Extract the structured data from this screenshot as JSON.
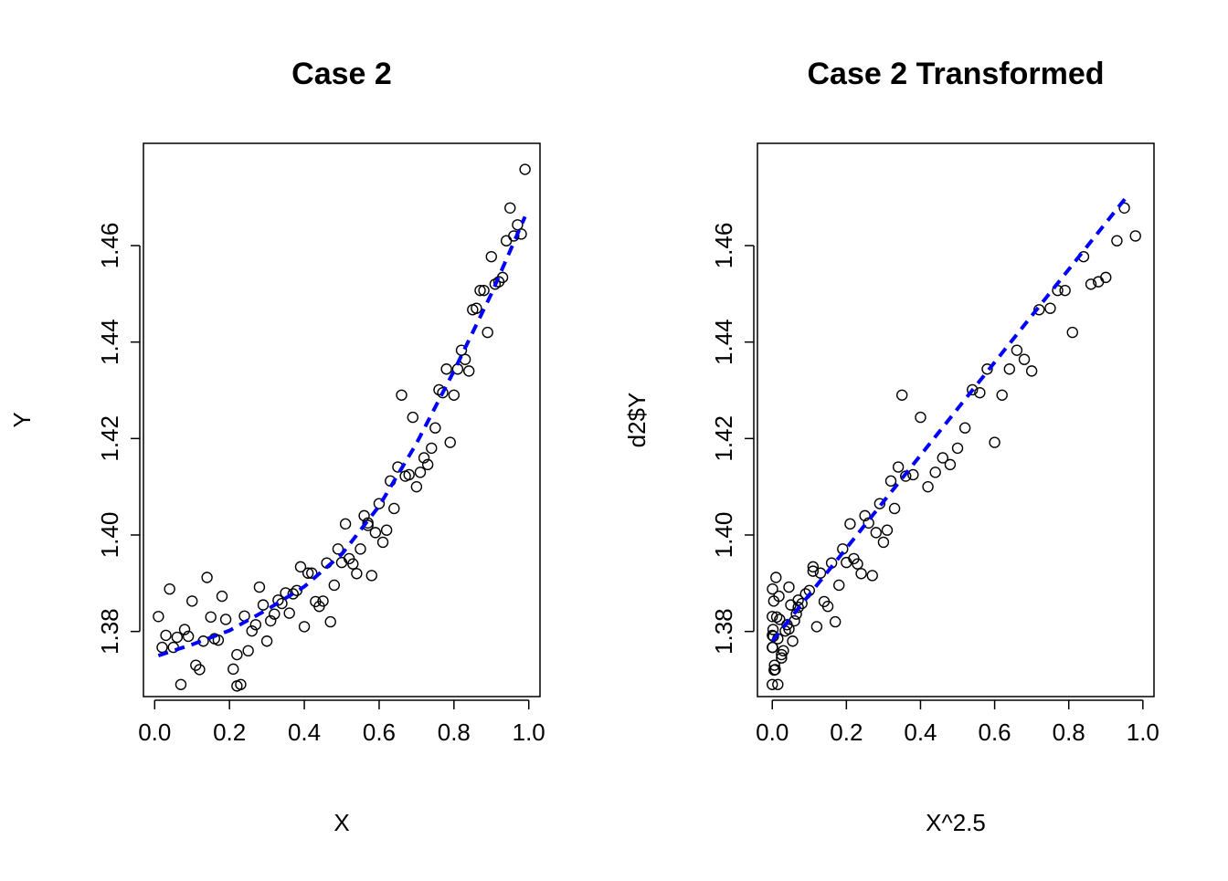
{
  "chart_data": [
    {
      "type": "scatter",
      "title": "Case 2",
      "xlabel": "X",
      "ylabel": "Y",
      "xlim": [
        -0.03,
        1.03
      ],
      "ylim": [
        1.3665,
        1.4812
      ],
      "xticks": [
        0.0,
        0.2,
        0.4,
        0.6,
        0.8,
        1.0
      ],
      "xtick_labels": [
        "0.0",
        "0.2",
        "0.4",
        "0.6",
        "0.8",
        "1.0"
      ],
      "yticks": [
        1.38,
        1.4,
        1.42,
        1.44,
        1.46
      ],
      "ytick_labels": [
        "1.38",
        "1.40",
        "1.42",
        "1.44",
        "1.46"
      ],
      "grid": false,
      "points": {
        "x": [
          0.01,
          0.02,
          0.03,
          0.04,
          0.05,
          0.07,
          0.08,
          0.09,
          0.1,
          0.11,
          0.12,
          0.14,
          0.15,
          0.16,
          0.18,
          0.19,
          0.21,
          0.22,
          0.23,
          0.24,
          0.25,
          0.26,
          0.27,
          0.28,
          0.29,
          0.3,
          0.31,
          0.32,
          0.33,
          0.34,
          0.36,
          0.37,
          0.38,
          0.39,
          0.4,
          0.41,
          0.42,
          0.43,
          0.44,
          0.45,
          0.46,
          0.47,
          0.48,
          0.49,
          0.5,
          0.51,
          0.52,
          0.53,
          0.54,
          0.55,
          0.56,
          0.57,
          0.58,
          0.59,
          0.6,
          0.61,
          0.62,
          0.63,
          0.64,
          0.65,
          0.66,
          0.67,
          0.68,
          0.69,
          0.7,
          0.71,
          0.72,
          0.73,
          0.74,
          0.75,
          0.76,
          0.77,
          0.78,
          0.79,
          0.8,
          0.81,
          0.82,
          0.83,
          0.84,
          0.85,
          0.86,
          0.87,
          0.88,
          0.89,
          0.9,
          0.91,
          0.92,
          0.93,
          0.94,
          0.95,
          0.96,
          0.97,
          0.98,
          0.99,
          0.06,
          0.13,
          0.17,
          0.22,
          0.35,
          0.57
        ],
        "y": [
          1.3831,
          1.3767,
          1.3792,
          1.3888,
          1.3767,
          1.369,
          1.3804,
          1.379,
          1.3863,
          1.373,
          1.3721,
          1.3912,
          1.383,
          1.3785,
          1.3873,
          1.3825,
          1.3722,
          1.3752,
          1.369,
          1.3832,
          1.376,
          1.3801,
          1.3814,
          1.3892,
          1.3855,
          1.378,
          1.3822,
          1.3836,
          1.3865,
          1.3858,
          1.3838,
          1.3878,
          1.3885,
          1.3934,
          1.381,
          1.3921,
          1.3921,
          1.3862,
          1.3852,
          1.3863,
          1.3942,
          1.382,
          1.3896,
          1.3971,
          1.3943,
          1.4023,
          1.3951,
          1.394,
          1.392,
          1.3971,
          1.404,
          1.4025,
          1.3916,
          1.4005,
          1.4065,
          1.3985,
          1.401,
          1.4112,
          1.4055,
          1.4141,
          1.429,
          1.4122,
          1.4125,
          1.4244,
          1.41,
          1.413,
          1.416,
          1.4146,
          1.418,
          1.4222,
          1.4301,
          1.4295,
          1.4344,
          1.4192,
          1.429,
          1.4344,
          1.4383,
          1.4364,
          1.434,
          1.4467,
          1.447,
          1.4507,
          1.4507,
          1.442,
          1.4577,
          1.452,
          1.4525,
          1.4534,
          1.461,
          1.4678,
          1.462,
          1.4643,
          1.4624,
          1.4758,
          1.3788,
          1.378,
          1.3782,
          1.3687,
          1.388,
          1.402
        ]
      },
      "fit_line": {
        "style": "dashed",
        "color": "#0000FF",
        "x": [
          0.01,
          0.1,
          0.2,
          0.3,
          0.4,
          0.5,
          0.6,
          0.7,
          0.8,
          0.9,
          0.99
        ],
        "y": [
          1.375,
          1.3773,
          1.3802,
          1.3845,
          1.3893,
          1.396,
          1.406,
          1.419,
          1.434,
          1.45,
          1.466
        ]
      }
    },
    {
      "type": "scatter",
      "title": "Case 2 Transformed",
      "xlabel": "X^2.5",
      "ylabel": "d2$Y",
      "xlim": [
        -0.04,
        1.03
      ],
      "ylim": [
        1.3665,
        1.4812
      ],
      "xticks": [
        0.0,
        0.2,
        0.4,
        0.6,
        0.8,
        1.0
      ],
      "xtick_labels": [
        "0.0",
        "0.2",
        "0.4",
        "0.6",
        "0.8",
        "1.0"
      ],
      "yticks": [
        1.38,
        1.4,
        1.42,
        1.44,
        1.46
      ],
      "ytick_labels": [
        "1.38",
        "1.40",
        "1.42",
        "1.44",
        "1.46"
      ],
      "grid": false,
      "points": {
        "x": [
          0.0,
          0.0001,
          0.0002,
          0.0003,
          0.0006,
          0.001,
          0.002,
          0.003,
          0.004,
          0.006,
          0.008,
          0.01,
          0.012,
          0.015,
          0.018,
          0.02,
          0.025,
          0.03,
          0.035,
          0.04,
          0.045,
          0.05,
          0.055,
          0.06,
          0.065,
          0.07,
          0.08,
          0.09,
          0.1,
          0.11,
          0.12,
          0.13,
          0.14,
          0.15,
          0.16,
          0.17,
          0.18,
          0.19,
          0.2,
          0.21,
          0.22,
          0.23,
          0.24,
          0.25,
          0.26,
          0.27,
          0.28,
          0.29,
          0.3,
          0.31,
          0.32,
          0.33,
          0.34,
          0.35,
          0.36,
          0.38,
          0.4,
          0.42,
          0.44,
          0.46,
          0.48,
          0.5,
          0.52,
          0.54,
          0.56,
          0.58,
          0.6,
          0.62,
          0.64,
          0.66,
          0.68,
          0.7,
          0.72,
          0.75,
          0.77,
          0.79,
          0.81,
          0.84,
          0.86,
          0.88,
          0.9,
          0.93,
          0.95,
          0.98,
          0.005,
          0.015,
          0.025,
          0.045,
          0.07,
          0.11
        ],
        "y": [
          1.369,
          1.3831,
          1.3767,
          1.3792,
          1.3888,
          1.3767,
          1.3804,
          1.379,
          1.3863,
          1.373,
          1.3721,
          1.3912,
          1.383,
          1.3785,
          1.3873,
          1.3825,
          1.3752,
          1.376,
          1.3801,
          1.3814,
          1.3892,
          1.3855,
          1.378,
          1.3822,
          1.3836,
          1.3865,
          1.3858,
          1.3878,
          1.3885,
          1.3934,
          1.381,
          1.3921,
          1.3862,
          1.3852,
          1.3942,
          1.382,
          1.3896,
          1.3971,
          1.3943,
          1.4023,
          1.3951,
          1.394,
          1.392,
          1.404,
          1.4025,
          1.3916,
          1.4005,
          1.4065,
          1.3985,
          1.401,
          1.4112,
          1.4055,
          1.4141,
          1.429,
          1.4122,
          1.4125,
          1.4244,
          1.41,
          1.413,
          1.416,
          1.4146,
          1.418,
          1.4222,
          1.4301,
          1.4295,
          1.4344,
          1.4192,
          1.429,
          1.4344,
          1.4383,
          1.4364,
          1.434,
          1.4467,
          1.447,
          1.4507,
          1.4507,
          1.442,
          1.4577,
          1.452,
          1.4525,
          1.4534,
          1.461,
          1.4678,
          1.462,
          1.372,
          1.369,
          1.3745,
          1.3805,
          1.385,
          1.3925
        ]
      },
      "fit_line": {
        "style": "dashed",
        "color": "#0000FF",
        "x": [
          0.0,
          0.955
        ],
        "y": [
          1.378,
          1.47
        ]
      }
    }
  ]
}
